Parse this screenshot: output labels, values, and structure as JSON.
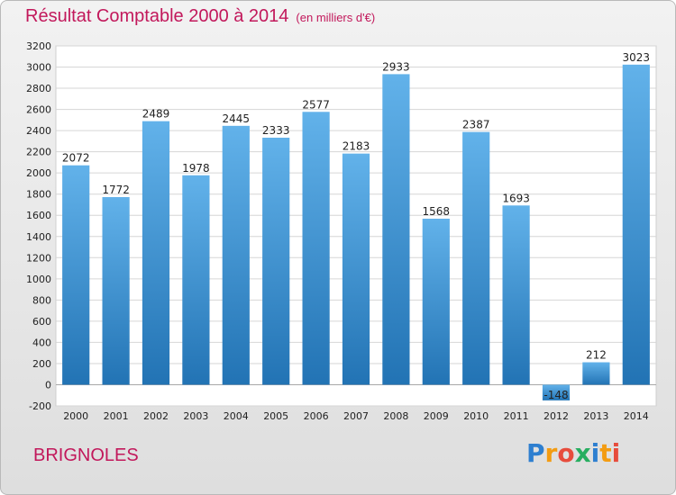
{
  "header": {
    "title": "Résultat Comptable 2000 à 2014",
    "subtitle": "(en milliers d'€)"
  },
  "footer": {
    "city": "BRIGNOLES",
    "logo_letters": [
      "P",
      "r",
      "o",
      "x",
      "i",
      "t",
      "i"
    ]
  },
  "colors": {
    "title": "#c2185b",
    "bar_top": "#62b2ea",
    "bar_bottom": "#2273b4"
  },
  "chart_data": {
    "type": "bar",
    "title": "Résultat Comptable 2000 à 2014",
    "subtitle": "(en milliers d'€)",
    "categories": [
      "2000",
      "2001",
      "2002",
      "2003",
      "2004",
      "2005",
      "2006",
      "2007",
      "2008",
      "2009",
      "2010",
      "2011",
      "2012",
      "2013",
      "2014"
    ],
    "values": [
      2072,
      1772,
      2489,
      1978,
      2445,
      2333,
      2577,
      2183,
      2933,
      1568,
      2387,
      1693,
      -148,
      212,
      3023
    ],
    "data_labels": [
      "2072",
      "1772",
      "2489",
      "1978",
      "2445",
      "2333",
      "2577",
      "2183",
      "2933",
      "1568",
      "2387",
      "1693",
      "-148",
      "212",
      "3023"
    ],
    "y_ticks": [
      "-200",
      "0",
      "200",
      "400",
      "600",
      "800",
      "1000",
      "1200",
      "1400",
      "1600",
      "1800",
      "2000",
      "2200",
      "2400",
      "2600",
      "2800",
      "3000",
      "3200"
    ],
    "ylim": [
      -200,
      3200
    ],
    "grid": true,
    "legend": "none"
  }
}
